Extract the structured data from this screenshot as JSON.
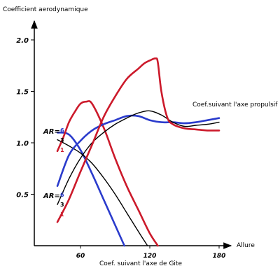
{
  "chart_data": {
    "type": "line",
    "ylabel": "Coefficient aerodynamique",
    "xlabel": "Allure",
    "x_ticks": [
      60,
      120,
      180
    ],
    "y_ticks": [
      {
        "value": 0.5,
        "label": "0.5"
      },
      {
        "value": 1.0,
        "label": "1.0"
      },
      {
        "value": 1.5,
        "label": "1.5"
      },
      {
        "value": 2.0,
        "label": "2.0"
      }
    ],
    "xlim": [
      20,
      190
    ],
    "ylim": [
      0,
      2.1
    ],
    "annotations": {
      "propulsif": "Coef.suivant l'axe propulsif",
      "gite": "Coef. suivant l'axe de Gite"
    },
    "ar_label": "AR=",
    "ar_groups": [
      {
        "group": "gite",
        "entries": [
          {
            "text": "6",
            "color": "#2a3bcc"
          },
          {
            "text": "3",
            "color": "#000000"
          },
          {
            "text": "1",
            "color": "#cc1a2b"
          }
        ]
      },
      {
        "group": "propulsif",
        "entries": [
          {
            "text": "6",
            "color": "#2a3bcc"
          },
          {
            "text": "3",
            "color": "#000000"
          },
          {
            "text": "1",
            "color": "#cc1a2b"
          }
        ]
      }
    ],
    "series": [
      {
        "group": "gite",
        "ar": "6",
        "color": "#2a3bcc",
        "x": [
          40,
          50,
          60,
          70,
          80,
          90,
          98
        ],
        "y": [
          1.1,
          1.08,
          0.93,
          0.7,
          0.45,
          0.2,
          0.0
        ]
      },
      {
        "group": "gite",
        "ar": "3",
        "color": "#000000",
        "x": [
          40,
          50,
          60,
          70,
          80,
          90,
          100,
          110,
          118
        ],
        "y": [
          1.03,
          0.97,
          0.9,
          0.8,
          0.66,
          0.5,
          0.32,
          0.14,
          0.0
        ]
      },
      {
        "group": "gite",
        "ar": "1",
        "color": "#cc1a2b",
        "x": [
          40,
          45,
          50,
          55,
          60,
          65,
          70,
          80,
          90,
          100,
          110,
          120,
          127
        ],
        "y": [
          0.92,
          1.05,
          1.2,
          1.3,
          1.38,
          1.4,
          1.38,
          1.15,
          0.85,
          0.58,
          0.35,
          0.12,
          0.0
        ]
      },
      {
        "group": "propulsif",
        "ar": "6",
        "color": "#2a3bcc",
        "x": [
          40,
          50,
          60,
          70,
          80,
          90,
          100,
          110,
          120,
          130,
          140,
          150,
          160,
          170,
          180
        ],
        "y": [
          0.58,
          0.88,
          1.02,
          1.12,
          1.18,
          1.22,
          1.26,
          1.26,
          1.22,
          1.2,
          1.2,
          1.19,
          1.2,
          1.22,
          1.24
        ]
      },
      {
        "group": "propulsif",
        "ar": "3",
        "color": "#000000",
        "x": [
          40,
          50,
          60,
          70,
          80,
          90,
          100,
          110,
          120,
          130,
          140,
          150,
          160,
          170,
          180
        ],
        "y": [
          0.4,
          0.65,
          0.85,
          1.0,
          1.1,
          1.18,
          1.24,
          1.29,
          1.31,
          1.27,
          1.2,
          1.16,
          1.17,
          1.18,
          1.2
        ]
      },
      {
        "group": "propulsif",
        "ar": "1",
        "color": "#cc1a2b",
        "x": [
          40,
          50,
          60,
          70,
          80,
          90,
          100,
          110,
          115,
          120,
          125,
          127,
          130,
          135,
          140,
          150,
          160,
          170,
          180
        ],
        "y": [
          0.23,
          0.45,
          0.72,
          0.98,
          1.25,
          1.45,
          1.62,
          1.72,
          1.77,
          1.8,
          1.82,
          1.78,
          1.5,
          1.25,
          1.18,
          1.14,
          1.13,
          1.12,
          1.12
        ]
      }
    ]
  }
}
